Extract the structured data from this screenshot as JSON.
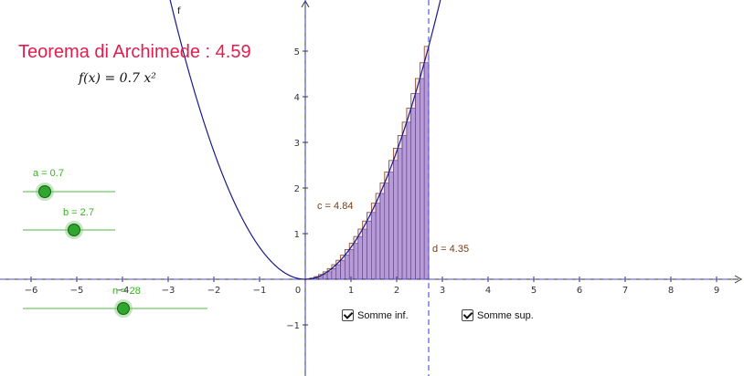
{
  "title": "Teorema di Archimede : 4.59",
  "formula": "f(x) = 0.7 x²",
  "curve_label": "f",
  "sliders": [
    {
      "id": "a",
      "label": "a = 0.7",
      "value": 0.7,
      "min": 0,
      "max": 5
    },
    {
      "id": "b",
      "label": "b = 2.7",
      "value": 2.7,
      "min": 0,
      "max": 5
    },
    {
      "id": "n",
      "label": "n = 28",
      "value": 28,
      "min": 1,
      "max": 100
    }
  ],
  "value_labels": {
    "c": "c = 4.84",
    "d": "d = 4.35"
  },
  "checkboxes": [
    {
      "label": "Somme inf.",
      "checked": true
    },
    {
      "label": "Somme sup.",
      "checked": true
    }
  ],
  "chart_data": {
    "type": "area",
    "function": {
      "name": "f",
      "coefficient": 0.7,
      "exponent": 2
    },
    "interval": [
      0,
      2.7
    ],
    "rectangles": 28,
    "xlim": [
      -6.5,
      9.5
    ],
    "ylim": [
      -2,
      6
    ],
    "x_ticks": [
      -6,
      -5,
      -4,
      -3,
      -2,
      -1,
      0,
      1,
      2,
      3,
      4,
      5,
      6,
      7,
      8,
      9
    ],
    "y_ticks": [
      -1,
      1,
      2,
      3,
      4,
      5
    ],
    "lower_sum": 4.35,
    "upper_sum": 4.84,
    "integral": 4.59,
    "colors": {
      "curve": "#1a1a8a",
      "lower_fill": "#b79ad8",
      "upper_edge": "#8b4513",
      "axis": "#333333",
      "guide": "#4a4ae0",
      "title": "#e01e4e",
      "slider": "#34b41e"
    }
  }
}
